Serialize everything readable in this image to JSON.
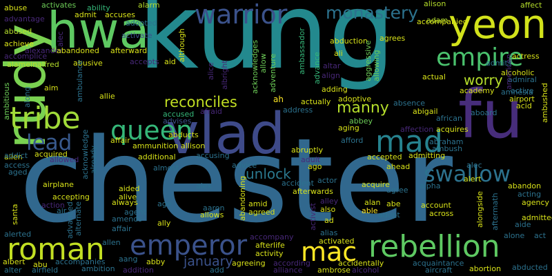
{
  "words": [
    {
      "text": "chester",
      "color": "#31688e"
    },
    {
      "text": "kung",
      "color": "#23898e"
    },
    {
      "text": "fu",
      "color": "#472d7b"
    },
    {
      "text": "rudy",
      "color": "#7ad151"
    },
    {
      "text": "vlad",
      "color": "#3e4a89"
    },
    {
      "text": "hwa",
      "color": "#5ec962"
    },
    {
      "text": "yeon",
      "color": "#d2e21b"
    },
    {
      "text": "warrior",
      "color": "#3b528b"
    },
    {
      "text": "empire",
      "color": "#4ac16d"
    },
    {
      "text": "monastery",
      "color": "#2c728e"
    },
    {
      "text": "tribe",
      "color": "#a0da39"
    },
    {
      "text": "queen",
      "color": "#35b779"
    },
    {
      "text": "mad",
      "color": "#26828e"
    },
    {
      "text": "lead",
      "color": "#38598c"
    },
    {
      "text": "emperor",
      "color": "#3b528b"
    },
    {
      "text": "roman",
      "color": "#c2df23"
    },
    {
      "text": "rebellion",
      "color": "#5ec962"
    },
    {
      "text": "mac",
      "color": "#fde725"
    },
    {
      "text": "swallow",
      "color": "#2c728e"
    },
    {
      "text": "worry",
      "color": "#b5de2b"
    },
    {
      "text": "reconciles",
      "color": "#c2df23"
    },
    {
      "text": "manny",
      "color": "#b5de2b"
    },
    {
      "text": "unlock",
      "color": "#2a788e"
    },
    {
      "text": "january",
      "color": "#3b528b"
    },
    {
      "text": "abuse",
      "color": "#d8e219"
    },
    {
      "text": "advantage",
      "color": "#482878"
    },
    {
      "text": "abused",
      "color": "#b5de2b"
    },
    {
      "text": "achieve",
      "color": "#d8e219"
    },
    {
      "text": "accomplice",
      "color": "#482878"
    },
    {
      "text": "alameinalfred",
      "color": "#b5de2b"
    },
    {
      "text": "ambitious",
      "color": "#6ece58"
    },
    {
      "text": "alec",
      "color": "#482878"
    },
    {
      "text": "activates",
      "color": "#6ece58"
    },
    {
      "text": "ability",
      "color": "#35b779"
    },
    {
      "text": "admit",
      "color": "#d8e219"
    },
    {
      "text": "accuses",
      "color": "#d8e219"
    },
    {
      "text": "adopted",
      "color": "#2c728e"
    },
    {
      "text": "activate",
      "color": "#3b528b"
    },
    {
      "text": "alarm",
      "color": "#b5de2b"
    },
    {
      "text": "alexander",
      "color": "#482878"
    },
    {
      "text": "abandoned",
      "color": "#d8e219"
    },
    {
      "text": "afterward",
      "color": "#d8e219"
    },
    {
      "text": "abusive",
      "color": "#d8e219"
    },
    {
      "text": "accepts",
      "color": "#482878"
    },
    {
      "text": "aid",
      "color": "#d8e219"
    },
    {
      "text": "aim",
      "color": "#d8e219"
    },
    {
      "text": "along",
      "color": "#2c728e"
    },
    {
      "text": "ambulance",
      "color": "#2c728e"
    },
    {
      "text": "allie",
      "color": "#d8e219"
    },
    {
      "text": "advises",
      "color": "#3b528b"
    },
    {
      "text": "although",
      "color": "#d8e219"
    },
    {
      "text": "alice",
      "color": "#482878"
    },
    {
      "text": "albright",
      "color": "#482878"
    },
    {
      "text": "afraid",
      "color": "#482878"
    },
    {
      "text": "accused",
      "color": "#35b779"
    },
    {
      "text": "abducts",
      "color": "#d8e219"
    },
    {
      "text": "acknowledges",
      "color": "#6ece58"
    },
    {
      "text": "allow",
      "color": "#6ece58"
    },
    {
      "text": "adventure",
      "color": "#6ece58"
    },
    {
      "text": "ambassador",
      "color": "#35b779"
    },
    {
      "text": "advance",
      "color": "#35b779"
    },
    {
      "text": "altar",
      "color": "#482878"
    },
    {
      "text": "align",
      "color": "#482878"
    },
    {
      "text": "abduction",
      "color": "#d8e219"
    },
    {
      "text": "agrees",
      "color": "#d8e219"
    },
    {
      "text": "ali",
      "color": "#d8e219"
    },
    {
      "text": "aggressive",
      "color": "#6ece58"
    },
    {
      "text": "allowing",
      "color": "#6ece58"
    },
    {
      "text": "adding",
      "color": "#d8e219"
    },
    {
      "text": "adoptive",
      "color": "#d8e219"
    },
    {
      "text": "ah",
      "color": "#fde725"
    },
    {
      "text": "actually",
      "color": "#d8e219"
    },
    {
      "text": "address",
      "color": "#2c728e"
    },
    {
      "text": "abbey",
      "color": "#6ece58"
    },
    {
      "text": "aging",
      "color": "#d8e219"
    },
    {
      "text": "alison",
      "color": "#b5de2b"
    },
    {
      "text": "accompanied",
      "color": "#d8e219"
    },
    {
      "text": "adam",
      "color": "#b5de2b"
    },
    {
      "text": "affect",
      "color": "#b5de2b"
    },
    {
      "text": "actress",
      "color": "#d8e219"
    },
    {
      "text": "admits",
      "color": "#2c728e"
    },
    {
      "text": "alcoholic",
      "color": "#d8e219"
    },
    {
      "text": "admiral",
      "color": "#2c728e"
    },
    {
      "text": "active",
      "color": "#2c728e"
    },
    {
      "text": "acid",
      "color": "#d8e219"
    },
    {
      "text": "actual",
      "color": "#d8e219"
    },
    {
      "text": "academy",
      "color": "#d8e219"
    },
    {
      "text": "amnesia",
      "color": "#2c728e"
    },
    {
      "text": "airport",
      "color": "#d8e219"
    },
    {
      "text": "absence",
      "color": "#2c728e"
    },
    {
      "text": "abigail",
      "color": "#d8e219"
    },
    {
      "text": "aboard",
      "color": "#2c728e"
    },
    {
      "text": "african",
      "color": "#2c728e"
    },
    {
      "text": "acquires",
      "color": "#d8e219"
    },
    {
      "text": "american",
      "color": "#482878"
    },
    {
      "text": "affection",
      "color": "#482878"
    },
    {
      "text": "abraham",
      "color": "#2c728e"
    },
    {
      "text": "ambush",
      "color": "#2c728e"
    },
    {
      "text": "ambushed",
      "color": "#d8e219"
    },
    {
      "text": "affair",
      "color": "#d8e219"
    },
    {
      "text": "alien",
      "color": "#d8e219"
    },
    {
      "text": "addict",
      "color": "#2c728e"
    },
    {
      "text": "acquired",
      "color": "#d8e219"
    },
    {
      "text": "ammunition",
      "color": "#d8e219"
    },
    {
      "text": "allison",
      "color": "#d8e219"
    },
    {
      "text": "additional",
      "color": "#d8e219"
    },
    {
      "text": "accusing",
      "color": "#2c728e"
    },
    {
      "text": "afford",
      "color": "#2c728e"
    },
    {
      "text": "abruptly",
      "color": "#d8e219"
    },
    {
      "text": "adult",
      "color": "#482878"
    },
    {
      "text": "admitting",
      "color": "#d8e219"
    },
    {
      "text": "accepted",
      "color": "#d8e219"
    },
    {
      "text": "access",
      "color": "#2c728e"
    },
    {
      "text": "allowed",
      "color": "#482878"
    },
    {
      "text": "acknowledge",
      "color": "#2c728e"
    },
    {
      "text": "already",
      "color": "#2c728e"
    },
    {
      "text": "aged",
      "color": "#2c728e"
    },
    {
      "text": "almost",
      "color": "#2c728e"
    },
    {
      "text": "advice",
      "color": "#2c728e"
    },
    {
      "text": "ago",
      "color": "#d8e219"
    },
    {
      "text": "ahead",
      "color": "#d8e219"
    },
    {
      "text": "alec",
      "color": "#2c728e"
    },
    {
      "text": "airplane",
      "color": "#d8e219"
    },
    {
      "text": "alex",
      "color": "#2c728e"
    },
    {
      "text": "actor",
      "color": "#2c728e"
    },
    {
      "text": "accident",
      "color": "#2c728e"
    },
    {
      "text": "afterwards",
      "color": "#d8e219"
    },
    {
      "text": "acquire",
      "color": "#d8e219"
    },
    {
      "text": "agree",
      "color": "#2c728e"
    },
    {
      "text": "alpha",
      "color": "#2c728e"
    },
    {
      "text": "alert",
      "color": "#d8e219"
    },
    {
      "text": "abandon",
      "color": "#d8e219"
    },
    {
      "text": "acting",
      "color": "#2c728e"
    },
    {
      "text": "aided",
      "color": "#d8e219"
    },
    {
      "text": "alive",
      "color": "#d8e219"
    },
    {
      "text": "always",
      "color": "#d8e219"
    },
    {
      "text": "accepting",
      "color": "#d8e219"
    },
    {
      "text": "santa",
      "color": "#d8e219"
    },
    {
      "text": "action",
      "color": "#482878"
    },
    {
      "text": "air",
      "color": "#2c728e"
    },
    {
      "text": "advanced",
      "color": "#2c728e"
    },
    {
      "text": "alternate",
      "color": "#2c728e"
    },
    {
      "text": "age",
      "color": "#2c728e"
    },
    {
      "text": "aaron",
      "color": "#2c728e"
    },
    {
      "text": "allows",
      "color": "#d8e219"
    },
    {
      "text": "abandoning",
      "color": "#d8e219"
    },
    {
      "text": "amid",
      "color": "#d8e219"
    },
    {
      "text": "agreed",
      "color": "#d8e219"
    },
    {
      "text": "alley",
      "color": "#482878"
    },
    {
      "text": "also",
      "color": "#d8e219"
    },
    {
      "text": "ad",
      "color": "#d8e219"
    },
    {
      "text": "activist",
      "color": "#482878"
    },
    {
      "text": "alan",
      "color": "#d8e219"
    },
    {
      "text": "able",
      "color": "#fde725"
    },
    {
      "text": "abe",
      "color": "#d8e219"
    },
    {
      "text": "adopt",
      "color": "#2c728e"
    },
    {
      "text": "account",
      "color": "#d8e219"
    },
    {
      "text": "across",
      "color": "#d8e219"
    },
    {
      "text": "alongside",
      "color": "#d8e219"
    },
    {
      "text": "aftermath",
      "color": "#2c728e"
    },
    {
      "text": "agency",
      "color": "#d8e219"
    },
    {
      "text": "admitted",
      "color": "#d8e219"
    },
    {
      "text": "aide",
      "color": "#2c728e"
    },
    {
      "text": "agent",
      "color": "#2c728e"
    },
    {
      "text": "amends",
      "color": "#2c728e"
    },
    {
      "text": "affair",
      "color": "#2c728e"
    },
    {
      "text": "ally",
      "color": "#d8e219"
    },
    {
      "text": "alerted",
      "color": "#2c728e"
    },
    {
      "text": "allen",
      "color": "#2c728e"
    },
    {
      "text": "accompany",
      "color": "#482878"
    },
    {
      "text": "afterlife",
      "color": "#d8e219"
    },
    {
      "text": "activated",
      "color": "#d8e219"
    },
    {
      "text": "alias",
      "color": "#2c728e"
    },
    {
      "text": "alone",
      "color": "#2c728e"
    },
    {
      "text": "act",
      "color": "#2c728e"
    },
    {
      "text": "albert",
      "color": "#d8e219"
    },
    {
      "text": "abu",
      "color": "#d8e219"
    },
    {
      "text": "accompanies",
      "color": "#2c728e"
    },
    {
      "text": "aang",
      "color": "#2c728e"
    },
    {
      "text": "abby",
      "color": "#d8e219"
    },
    {
      "text": "agreeing",
      "color": "#d8e219"
    },
    {
      "text": "activity",
      "color": "#d8e219"
    },
    {
      "text": "according",
      "color": "#482878"
    },
    {
      "text": "accidentally",
      "color": "#d8e219"
    },
    {
      "text": "acquaintance",
      "color": "#2c728e"
    },
    {
      "text": "alter",
      "color": "#2c728e"
    },
    {
      "text": "alrfield",
      "color": "#2c728e"
    },
    {
      "text": "ambition",
      "color": "#2c728e"
    },
    {
      "text": "addition",
      "color": "#482878"
    },
    {
      "text": "add",
      "color": "#2c728e"
    },
    {
      "text": "alliance",
      "color": "#482878"
    },
    {
      "text": "ambrose",
      "color": "#d8e219"
    },
    {
      "text": "alcohol",
      "color": "#482878"
    },
    {
      "text": "aircraft",
      "color": "#2c728e"
    },
    {
      "text": "abortion",
      "color": "#d8e219"
    },
    {
      "text": "abducted",
      "color": "#2c728e"
    }
  ]
}
